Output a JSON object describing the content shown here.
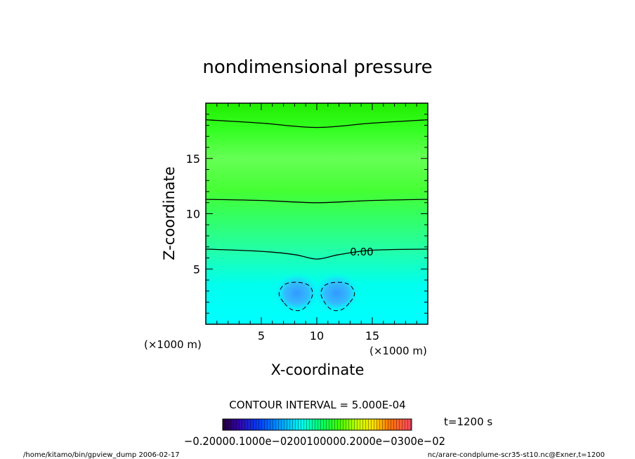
{
  "chart_data": {
    "type": "heatmap",
    "title": "nondimensional pressure",
    "xlabel": "X-coordinate",
    "ylabel": "Z-coordinate",
    "x_unit": "(×1000 m)",
    "y_unit": "(×1000 m)",
    "xlim": [
      0,
      20
    ],
    "ylim": [
      0,
      20
    ],
    "x_ticks": [
      5,
      10,
      15
    ],
    "y_ticks": [
      5,
      10,
      15
    ],
    "contour_interval_text": "CONTOUR INTERVAL = 5.000E-04",
    "time_text": "t=1200 s",
    "contour_label": "0.00",
    "colorbar_text": "−0.20000.1000e−0200100000.2000e−0300e−02",
    "colorbar_range": [
      -0.002,
      0.003
    ],
    "footer_left": "/home/kitamo/bin/gpview_dump  2006-02-17",
    "footer_right": "nc/arare-condplume-scr35-st10.nc@Exner,t=1200",
    "contours": [
      {
        "style": "solid",
        "points": [
          [
            0,
            18.5
          ],
          [
            5,
            18.2
          ],
          [
            10,
            17.8
          ],
          [
            15,
            18.2
          ],
          [
            20,
            18.5
          ]
        ]
      },
      {
        "style": "solid",
        "points": [
          [
            0,
            11.3
          ],
          [
            5,
            11.2
          ],
          [
            10,
            11.0
          ],
          [
            15,
            11.2
          ],
          [
            20,
            11.3
          ]
        ]
      },
      {
        "style": "solid",
        "points": [
          [
            0,
            6.8
          ],
          [
            5,
            6.6
          ],
          [
            8,
            6.3
          ],
          [
            10,
            5.9
          ],
          [
            12,
            6.3
          ],
          [
            15,
            6.7
          ],
          [
            20,
            6.8
          ]
        ]
      }
    ],
    "low_centers": [
      {
        "x": 8.2,
        "z": 2.8,
        "contour": [
          [
            7.0,
            2.0
          ],
          [
            6.6,
            2.8
          ],
          [
            7.1,
            3.6
          ],
          [
            8.2,
            3.8
          ],
          [
            9.3,
            3.5
          ],
          [
            9.6,
            2.6
          ],
          [
            8.8,
            1.4
          ],
          [
            7.8,
            1.3
          ]
        ]
      },
      {
        "x": 11.8,
        "z": 2.8,
        "contour": [
          [
            13.0,
            2.0
          ],
          [
            13.4,
            2.8
          ],
          [
            12.9,
            3.6
          ],
          [
            11.8,
            3.8
          ],
          [
            10.7,
            3.5
          ],
          [
            10.4,
            2.6
          ],
          [
            11.2,
            1.4
          ],
          [
            12.2,
            1.3
          ]
        ]
      }
    ]
  }
}
